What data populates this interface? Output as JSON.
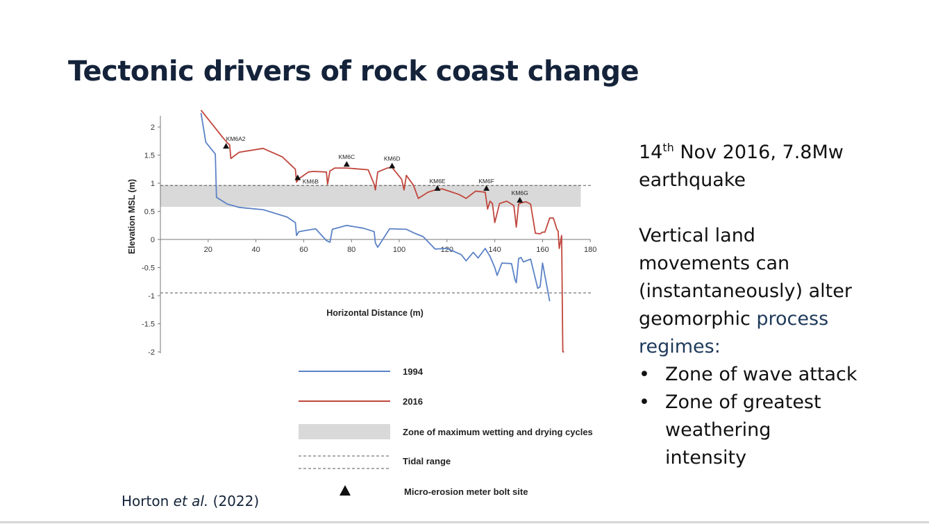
{
  "slide": {
    "title": "Tectonic drivers of rock coast change",
    "citation": {
      "prefix": "Horton ",
      "italic": "et al.",
      "suffix": " (2022)"
    }
  },
  "right_panel": {
    "event_day": "14",
    "event_ordinal": "th",
    "event_rest": " Nov 2016, 7.8Mw",
    "event_line2": "earthquake",
    "para_lines": [
      "Vertical land",
      "movements can",
      "(instantaneously) alter"
    ],
    "geomorphic_word": "geomorphic ",
    "process_word": "process",
    "regimes_word": "regimes:",
    "bullets": [
      {
        "lines": [
          "Zone of wave attack"
        ]
      },
      {
        "lines": [
          "Zone of greatest",
          "weathering",
          "intensity"
        ]
      }
    ]
  },
  "chart_data": {
    "type": "line",
    "title": "",
    "xlabel": "Horizontal Distance (m)",
    "ylabel": "Elevation MSL (m)",
    "xlim": [
      0,
      180
    ],
    "ylim": [
      -2,
      2.2
    ],
    "xticks": [
      20,
      40,
      60,
      80,
      100,
      120,
      140,
      160,
      180
    ],
    "yticks": [
      2,
      1.5,
      1,
      0.5,
      0,
      -0.5,
      -1,
      -1.5,
      -2
    ],
    "colors": {
      "s1994": "#5b82c6",
      "s2016": "#c0463c",
      "zone": "#d9d9d9"
    },
    "series": [
      {
        "name": "1994",
        "x": [
          17,
          19,
          23,
          23.5,
          28,
          33,
          43,
          53,
          56.5,
          57,
          58,
          65,
          69.5,
          71,
          72,
          78,
          85,
          89.5,
          90,
          91,
          96,
          103,
          107,
          110,
          115,
          120,
          126,
          128,
          131,
          133,
          136,
          138,
          139,
          140,
          141,
          143,
          147,
          148.5,
          149,
          150,
          151,
          152,
          155,
          158,
          159,
          160,
          163
        ],
        "y": [
          2.25,
          1.73,
          1.52,
          0.75,
          0.63,
          0.57,
          0.53,
          0.4,
          0.3,
          0.07,
          0.14,
          0.19,
          -0.02,
          -0.05,
          0.18,
          0.25,
          0.2,
          0.14,
          -0.06,
          -0.14,
          0.19,
          0.18,
          0.1,
          0.05,
          -0.17,
          -0.16,
          -0.27,
          -0.38,
          -0.23,
          -0.33,
          -0.16,
          -0.3,
          -0.4,
          -0.5,
          -0.64,
          -0.42,
          -0.43,
          -0.72,
          -0.77,
          -0.34,
          -0.32,
          -0.4,
          -0.35,
          -0.87,
          -0.84,
          -0.42,
          -1.1
        ]
      },
      {
        "name": "2016",
        "x": [
          17,
          23,
          26,
          28,
          29,
          29.5,
          33,
          43,
          51,
          56.5,
          57,
          58,
          62,
          64,
          69.5,
          70,
          71,
          71.5,
          73,
          78,
          87,
          89.5,
          90,
          91,
          95,
          97,
          101,
          102,
          103,
          106,
          108,
          112,
          115,
          118,
          125,
          128,
          132,
          136,
          137,
          138,
          139,
          140,
          142,
          145,
          147,
          148,
          149,
          150,
          151,
          153,
          155,
          157,
          159,
          160,
          161,
          163,
          164.5,
          165,
          166,
          166.5,
          167,
          168,
          168.5,
          169
        ],
        "y": [
          2.3,
          1.98,
          1.82,
          1.72,
          1.68,
          1.44,
          1.55,
          1.62,
          1.47,
          1.25,
          1.02,
          1.08,
          1.2,
          1.21,
          1.2,
          0.98,
          1.22,
          1.23,
          1.27,
          1.27,
          1.24,
          0.98,
          0.88,
          1.2,
          1.27,
          1.28,
          1.07,
          0.88,
          1.14,
          0.96,
          0.73,
          0.84,
          0.88,
          0.9,
          0.8,
          0.73,
          0.86,
          0.84,
          0.54,
          0.68,
          0.64,
          0.3,
          0.64,
          0.68,
          0.63,
          0.6,
          0.22,
          0.63,
          0.65,
          0.67,
          0.63,
          0.11,
          0.1,
          0.13,
          0.13,
          0.38,
          0.38,
          0.32,
          0.18,
          0.15,
          -0.16,
          0.07,
          -2.0,
          -2.0
        ]
      }
    ],
    "zone_band": {
      "name": "Zone of maximum wetting and drying cycles",
      "y0": 0.58,
      "y1": 0.97,
      "x0": 0,
      "x1": 176
    },
    "tidal_range": {
      "name": "Tidal range",
      "y_upper": 0.96,
      "y_lower": -0.95
    },
    "bolt_sites": [
      {
        "label": "KM6A2",
        "x": 27.5,
        "y": 1.64
      },
      {
        "label": "KM6B",
        "x": 57.5,
        "y": 1.08
      },
      {
        "label": "KM6C",
        "x": 78,
        "y": 1.32
      },
      {
        "label": "KM6D",
        "x": 97,
        "y": 1.29
      },
      {
        "label": "KM6E",
        "x": 116,
        "y": 0.89
      },
      {
        "label": "KM6F",
        "x": 136.5,
        "y": 0.89
      },
      {
        "label": "KM6G",
        "x": 150.5,
        "y": 0.68
      }
    ],
    "legend": [
      {
        "label": "1994",
        "kind": "line",
        "color": "#5b82c6"
      },
      {
        "label": "2016",
        "kind": "line",
        "color": "#c0463c"
      },
      {
        "label": "Zone of maximum wetting and drying cycles",
        "kind": "band"
      },
      {
        "label": "Tidal range",
        "kind": "dashed"
      },
      {
        "label": "Micro-erosion meter bolt site",
        "kind": "triangle"
      }
    ],
    "legend_placement": "bottom"
  }
}
